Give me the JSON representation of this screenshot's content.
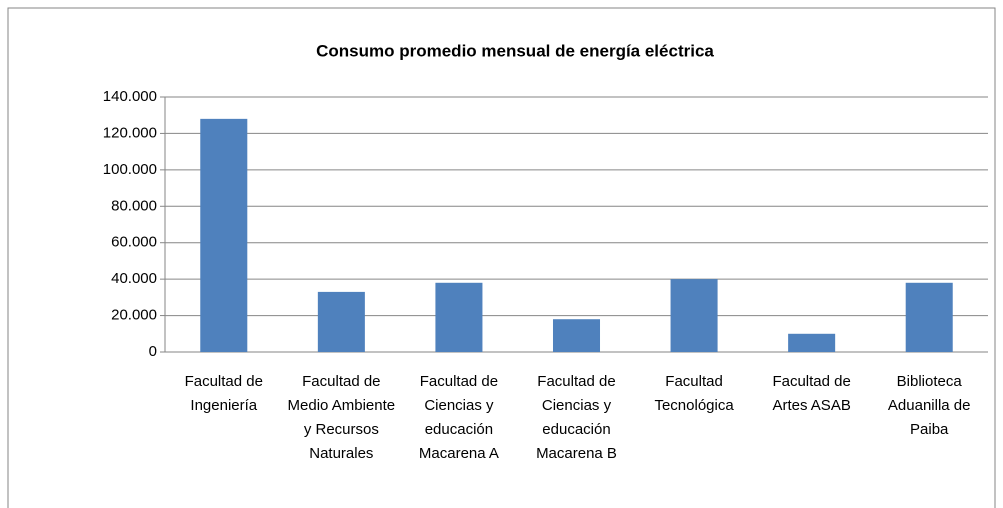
{
  "chart_data": {
    "type": "bar",
    "title": "Consumo promedio mensual de energía eléctrica",
    "categories": [
      "Facultad de Ingeniería",
      "Facultad de Medio Ambiente y Recursos Naturales",
      "Facultad de Ciencias y educación Macarena A",
      "Facultad de Ciencias y educación Macarena B",
      "Facultad Tecnológica",
      "Facultad de Artes ASAB",
      "Biblioteca Aduanilla de Paiba"
    ],
    "values": [
      128000,
      33000,
      38000,
      18000,
      40000,
      10000,
      38000
    ],
    "color": "#4f81bd",
    "ylim": [
      0,
      140000
    ],
    "yticks": [
      0,
      {
        "value": 20000,
        "label": "20.000"
      },
      {
        "value": 40000,
        "label": "40.000"
      },
      {
        "value": 60000,
        "label": "60.000"
      },
      {
        "value": 80000,
        "label": "80.000"
      },
      {
        "value": 100000,
        "label": "100.000"
      },
      {
        "value": 120000,
        "label": "120.000"
      },
      {
        "value": 140000,
        "label": "140.000"
      }
    ],
    "grid": true
  }
}
